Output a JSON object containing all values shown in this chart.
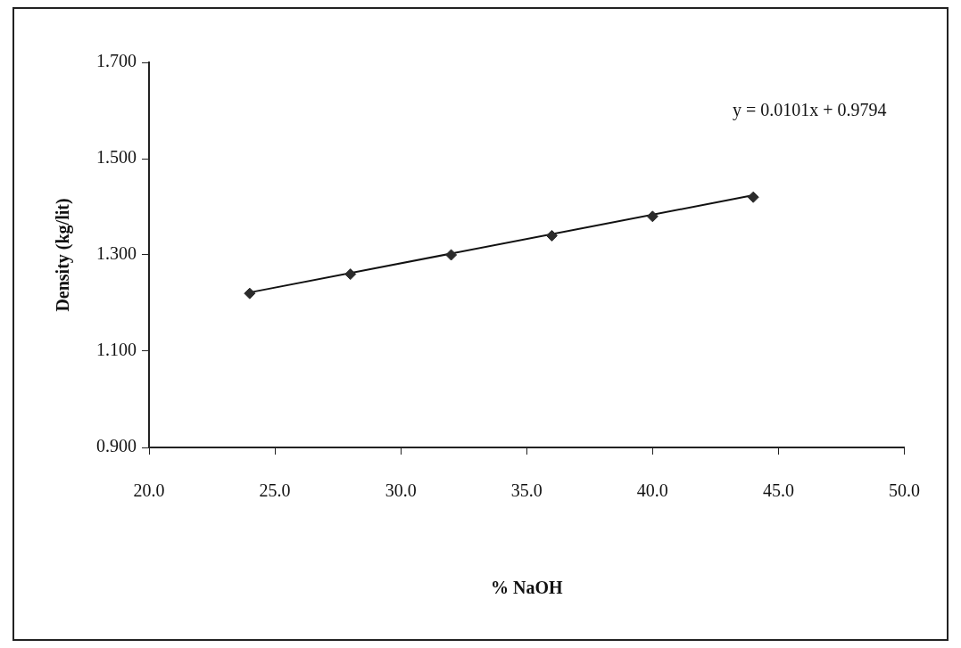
{
  "chart_data": {
    "type": "scatter",
    "xlabel": "% NaOH",
    "ylabel": "Density (kg/lit)",
    "marker": "diamond",
    "grid": false,
    "legend": false,
    "series": [
      {
        "color": "#2b2b2b",
        "x": [
          24,
          28,
          32,
          36,
          40,
          44
        ],
        "values": [
          1.22,
          1.26,
          1.3,
          1.34,
          1.38,
          1.42
        ]
      },
      {
        "type": "line",
        "marker": "none",
        "color": "#111111",
        "x": [
          24,
          44
        ],
        "values": [
          1.222,
          1.424
        ]
      }
    ],
    "xlim": [
      20,
      50
    ],
    "xticks": [
      {
        "value": 20,
        "label": "20.0"
      },
      {
        "value": 25,
        "label": "25.0"
      },
      {
        "value": 30,
        "label": "30.0"
      },
      {
        "value": 35,
        "label": "35.0"
      },
      {
        "value": 40,
        "label": "40.0"
      },
      {
        "value": 45,
        "label": "45.0"
      },
      {
        "value": 50,
        "label": "50.0"
      }
    ],
    "ylim": [
      0.9,
      1.7
    ],
    "yticks": [
      {
        "value": 0.9,
        "label": "0.900"
      },
      {
        "value": 1.1,
        "label": "1.100"
      },
      {
        "value": 1.3,
        "label": "1.300"
      },
      {
        "value": 1.5,
        "label": "1.500"
      },
      {
        "value": 1.7,
        "label": "1.700"
      }
    ],
    "annotations": [
      "y = 0.0101x + 0.9794"
    ]
  }
}
